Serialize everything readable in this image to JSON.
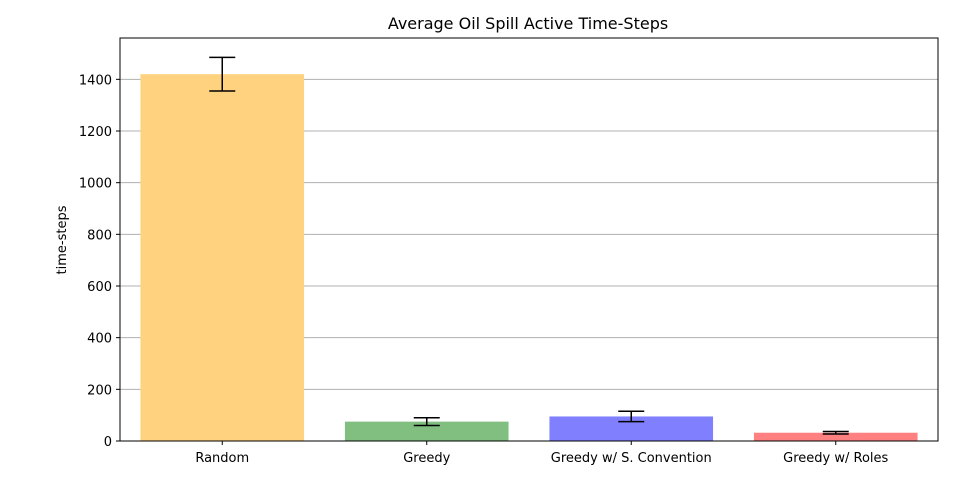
{
  "chart_data": {
    "type": "bar",
    "title": "Average Oil Spill Active Time-Steps",
    "xlabel": "",
    "ylabel": "time-steps",
    "categories": [
      "Random",
      "Greedy",
      "Greedy w/ S. Convention",
      "Greedy w/ Roles"
    ],
    "values": [
      1420,
      75,
      95,
      32
    ],
    "error": [
      65,
      15,
      20,
      5
    ],
    "colors": [
      "#FFD280",
      "#80BF80",
      "#8080FF",
      "#FF8080"
    ],
    "ylim": [
      0,
      1560
    ],
    "yticks": [
      0,
      200,
      400,
      600,
      800,
      1000,
      1200,
      1400
    ],
    "grid": "y"
  }
}
